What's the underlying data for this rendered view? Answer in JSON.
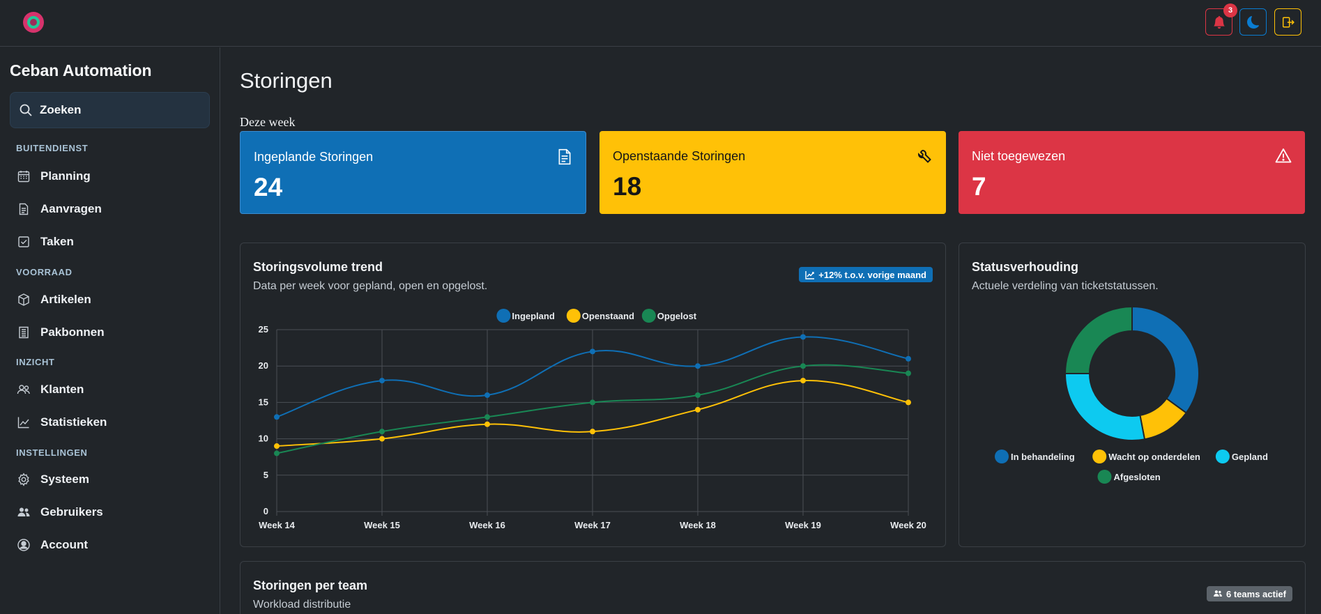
{
  "topbar": {
    "notifications_count": "3",
    "colors": {
      "bell": "#dc3545",
      "theme": "#0a7cd1",
      "logout": "#ffc107"
    }
  },
  "sidebar": {
    "brand": "Ceban Automation",
    "search_label": "Zoeken",
    "sections": [
      {
        "title": "BUITENDIENST",
        "items": [
          {
            "label": "Planning",
            "icon": "calendar-icon"
          },
          {
            "label": "Aanvragen",
            "icon": "file-icon"
          },
          {
            "label": "Taken",
            "icon": "check-square-icon"
          }
        ]
      },
      {
        "title": "VOORRAAD",
        "items": [
          {
            "label": "Artikelen",
            "icon": "box-icon"
          },
          {
            "label": "Pakbonnen",
            "icon": "receipt-icon"
          }
        ]
      },
      {
        "title": "INZICHT",
        "items": [
          {
            "label": "Klanten",
            "icon": "people-icon"
          },
          {
            "label": "Statistieken",
            "icon": "graph-icon"
          }
        ]
      },
      {
        "title": "INSTELLINGEN",
        "items": [
          {
            "label": "Systeem",
            "icon": "gear-icon"
          },
          {
            "label": "Gebruikers",
            "icon": "people-fill-icon"
          },
          {
            "label": "Account",
            "icon": "person-circle-icon"
          }
        ]
      }
    ]
  },
  "main": {
    "title": "Storingen",
    "week_label": "Deze week",
    "stats": [
      {
        "label": "Ingeplande Storingen",
        "value": "24",
        "color": "#0f6fb5",
        "icon": "file-text-icon"
      },
      {
        "label": "Openstaande Storingen",
        "value": "18",
        "color": "#ffc107",
        "icon": "wrench-icon"
      },
      {
        "label": "Niet toegewezen",
        "value": "7",
        "color": "#dc3545",
        "icon": "warning-icon"
      }
    ],
    "trend_panel": {
      "title": "Storingsvolume trend",
      "subtitle": "Data per week voor gepland, open en opgelost.",
      "badge": "+12% t.o.v. vorige maand"
    },
    "status_panel": {
      "title": "Statusverhouding",
      "subtitle": "Actuele verdeling van ticketstatussen."
    },
    "team_panel": {
      "title": "Storingen per team",
      "subtitle": "Workload distributie",
      "badge": "6 teams actief"
    }
  },
  "chart_data": [
    {
      "type": "line",
      "categories": [
        "Week 14",
        "Week 15",
        "Week 16",
        "Week 17",
        "Week 18",
        "Week 19",
        "Week 20"
      ],
      "series": [
        {
          "name": "Ingepland",
          "color": "#0f6fb5",
          "values": [
            13,
            18,
            16,
            22,
            20,
            24,
            21
          ]
        },
        {
          "name": "Openstaand",
          "color": "#ffc107",
          "values": [
            9,
            10,
            12,
            11,
            14,
            18,
            15
          ]
        },
        {
          "name": "Opgelost",
          "color": "#198754",
          "values": [
            8,
            11,
            13,
            15,
            16,
            20,
            19
          ]
        }
      ],
      "ylim": [
        0,
        25
      ],
      "yticks": [
        0,
        5,
        10,
        15,
        20,
        25
      ],
      "grid": true,
      "legend": "top-center"
    },
    {
      "type": "pie",
      "donut": true,
      "slices": [
        {
          "name": "In behandeling",
          "value": 35,
          "color": "#0f6fb5"
        },
        {
          "name": "Wacht op onderdelen",
          "value": 12,
          "color": "#ffc107"
        },
        {
          "name": "Gepland",
          "value": 28,
          "color": "#0dcaf0"
        },
        {
          "name": "Afgesloten",
          "value": 25,
          "color": "#198754"
        }
      ],
      "legend": "bottom"
    }
  ]
}
